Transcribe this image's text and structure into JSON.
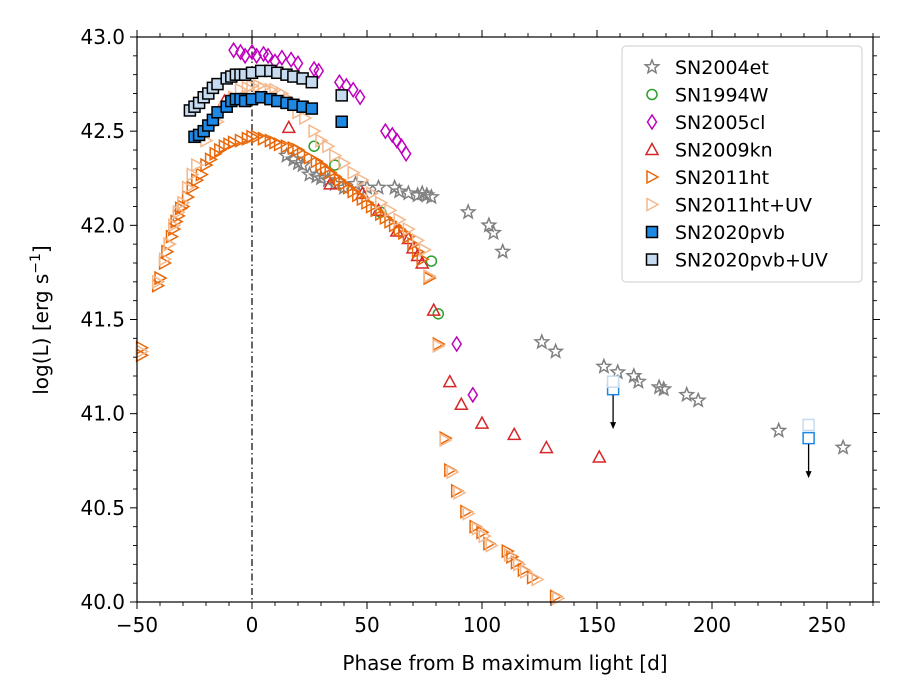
{
  "chart_data": {
    "type": "scatter",
    "xlabel": "Phase from B maximum light [d]",
    "ylabel_main": "log(L) [erg s",
    "ylabel_sup": "−1",
    "ylabel_close": "]",
    "xlim": [
      -50,
      270
    ],
    "ylim": [
      40.0,
      43.0
    ],
    "x_ticks": [
      -50,
      0,
      50,
      100,
      150,
      200,
      250
    ],
    "x_tick_labels": [
      "−50",
      "0",
      "50",
      "100",
      "150",
      "200",
      "250"
    ],
    "y_ticks": [
      40.0,
      40.5,
      41.0,
      41.5,
      42.0,
      42.5,
      43.0
    ],
    "y_tick_labels": [
      "40.0",
      "40.5",
      "41.0",
      "41.5",
      "42.0",
      "42.5",
      "43.0"
    ],
    "vertical_line_x": 0,
    "legend_position": "top-right",
    "series": [
      {
        "name": "SN2004et",
        "marker": "star",
        "color": "#808080",
        "fill": "none",
        "points": [
          [
            15,
            42.37
          ],
          [
            18,
            42.35
          ],
          [
            20,
            42.33
          ],
          [
            22,
            42.32
          ],
          [
            25,
            42.27
          ],
          [
            28,
            42.26
          ],
          [
            30,
            42.25
          ],
          [
            33,
            42.24
          ],
          [
            36,
            42.22
          ],
          [
            40,
            42.2
          ],
          [
            45,
            42.22
          ],
          [
            50,
            42.2
          ],
          [
            55,
            42.2
          ],
          [
            62,
            42.2
          ],
          [
            64,
            42.18
          ],
          [
            68,
            42.17
          ],
          [
            72,
            42.16
          ],
          [
            74,
            42.17
          ],
          [
            76,
            42.16
          ],
          [
            78,
            42.15
          ],
          [
            94,
            42.07
          ],
          [
            103,
            42.0
          ],
          [
            105,
            41.96
          ],
          [
            109,
            41.86
          ],
          [
            126,
            41.38
          ],
          [
            132,
            41.33
          ],
          [
            153,
            41.25
          ],
          [
            159,
            41.22
          ],
          [
            166,
            41.2
          ],
          [
            168,
            41.17
          ],
          [
            177,
            41.14
          ],
          [
            179,
            41.13
          ],
          [
            189,
            41.1
          ],
          [
            194,
            41.07
          ],
          [
            229,
            40.91
          ],
          [
            257,
            40.82
          ]
        ]
      },
      {
        "name": "SN1994W",
        "marker": "circle",
        "color": "#2ca02c",
        "fill": "none",
        "points": [
          [
            27,
            42.42
          ],
          [
            36,
            42.32
          ],
          [
            56,
            42.07
          ],
          [
            78,
            41.81
          ],
          [
            81,
            41.53
          ]
        ]
      },
      {
        "name": "SN2005cl",
        "marker": "diamond",
        "color": "#bf00bf",
        "fill": "none",
        "points": [
          [
            -8,
            42.93
          ],
          [
            -5,
            42.92
          ],
          [
            -3,
            42.9
          ],
          [
            0,
            42.92
          ],
          [
            2,
            42.9
          ],
          [
            5,
            42.91
          ],
          [
            7,
            42.9
          ],
          [
            10,
            42.87
          ],
          [
            13,
            42.89
          ],
          [
            17,
            42.88
          ],
          [
            20,
            42.86
          ],
          [
            27,
            42.83
          ],
          [
            29,
            42.82
          ],
          [
            38,
            42.76
          ],
          [
            41,
            42.74
          ],
          [
            44,
            42.72
          ],
          [
            47,
            42.68
          ],
          [
            58,
            42.5
          ],
          [
            61,
            42.48
          ],
          [
            63,
            42.45
          ],
          [
            65,
            42.42
          ],
          [
            67,
            42.38
          ],
          [
            89,
            41.37
          ],
          [
            96,
            41.1
          ]
        ]
      },
      {
        "name": "SN2009kn",
        "marker": "triangle-up",
        "color": "#d62728",
        "fill": "none",
        "points": [
          [
            -12,
            42.66
          ],
          [
            16,
            42.52
          ],
          [
            34,
            42.22
          ],
          [
            48,
            42.17
          ],
          [
            55,
            42.08
          ],
          [
            63,
            41.97
          ],
          [
            68,
            41.93
          ],
          [
            70,
            41.88
          ],
          [
            72,
            41.84
          ],
          [
            74,
            41.8
          ],
          [
            79,
            41.55
          ],
          [
            86,
            41.17
          ],
          [
            91,
            41.05
          ],
          [
            100,
            40.95
          ],
          [
            114,
            40.89
          ],
          [
            128,
            40.82
          ],
          [
            151,
            40.77
          ]
        ]
      },
      {
        "name": "SN2011ht",
        "marker": "triangle-right",
        "color": "#e8690b",
        "fill": "none",
        "points": [
          [
            -48,
            41.35
          ],
          [
            -48,
            41.31
          ],
          [
            -41,
            41.68
          ],
          [
            -40,
            41.72
          ],
          [
            -38,
            41.8
          ],
          [
            -37,
            41.86
          ],
          [
            -36,
            41.9
          ],
          [
            -35,
            41.94
          ],
          [
            -34,
            41.98
          ],
          [
            -33,
            42.02
          ],
          [
            -32,
            42.05
          ],
          [
            -31,
            42.09
          ],
          [
            -30,
            42.1
          ],
          [
            -28,
            42.15
          ],
          [
            -26,
            42.2
          ],
          [
            -24,
            42.24
          ],
          [
            -22,
            42.27
          ],
          [
            -20,
            42.32
          ],
          [
            -18,
            42.35
          ],
          [
            -16,
            42.38
          ],
          [
            -14,
            42.4
          ],
          [
            -12,
            42.42
          ],
          [
            -10,
            42.43
          ],
          [
            -8,
            42.44
          ],
          [
            -5,
            42.45
          ],
          [
            -2,
            42.46
          ],
          [
            0,
            42.47
          ],
          [
            2,
            42.47
          ],
          [
            5,
            42.46
          ],
          [
            8,
            42.45
          ],
          [
            10,
            42.44
          ],
          [
            12,
            42.43
          ],
          [
            15,
            42.42
          ],
          [
            18,
            42.41
          ],
          [
            20,
            42.4
          ],
          [
            22,
            42.38
          ],
          [
            25,
            42.36
          ],
          [
            28,
            42.34
          ],
          [
            30,
            42.32
          ],
          [
            32,
            42.3
          ],
          [
            34,
            42.28
          ],
          [
            36,
            42.26
          ],
          [
            38,
            42.24
          ],
          [
            40,
            42.22
          ],
          [
            42,
            42.2
          ],
          [
            44,
            42.18
          ],
          [
            46,
            42.16
          ],
          [
            48,
            42.14
          ],
          [
            50,
            42.12
          ],
          [
            52,
            42.1
          ],
          [
            54,
            42.08
          ],
          [
            56,
            42.06
          ],
          [
            58,
            42.04
          ],
          [
            60,
            42.02
          ],
          [
            62,
            42.0
          ],
          [
            64,
            41.98
          ],
          [
            66,
            41.96
          ],
          [
            68,
            41.94
          ],
          [
            70,
            41.9
          ],
          [
            72,
            41.86
          ],
          [
            74,
            41.82
          ],
          [
            77,
            41.72
          ],
          [
            81,
            41.37
          ],
          [
            84,
            40.87
          ],
          [
            86,
            40.7
          ],
          [
            89,
            40.59
          ],
          [
            93,
            40.48
          ],
          [
            97,
            40.4
          ],
          [
            100,
            40.37
          ],
          [
            103,
            40.31
          ],
          [
            111,
            40.27
          ],
          [
            113,
            40.24
          ],
          [
            115,
            40.21
          ],
          [
            118,
            40.17
          ],
          [
            122,
            40.13
          ],
          [
            132,
            40.03
          ]
        ]
      },
      {
        "name": "SN2011ht+UV",
        "marker": "triangle-right",
        "color": "#f4b88c",
        "fill": "none",
        "points": [
          [
            -48,
            41.33
          ],
          [
            -41,
            41.7
          ],
          [
            -38,
            41.82
          ],
          [
            -36,
            41.9
          ],
          [
            -34,
            42.0
          ],
          [
            -32,
            42.07
          ],
          [
            -30,
            42.12
          ],
          [
            -28,
            42.2
          ],
          [
            -26,
            42.27
          ],
          [
            -24,
            42.32
          ],
          [
            -20,
            42.45
          ],
          [
            -15,
            42.55
          ],
          [
            -12,
            42.62
          ],
          [
            -8,
            42.68
          ],
          [
            -5,
            42.72
          ],
          [
            -2,
            42.73
          ],
          [
            0,
            42.74
          ],
          [
            3,
            42.74
          ],
          [
            5,
            42.73
          ],
          [
            8,
            42.72
          ],
          [
            10,
            42.72
          ],
          [
            13,
            42.7
          ],
          [
            16,
            42.67
          ],
          [
            20,
            42.6
          ],
          [
            23,
            42.57
          ],
          [
            27,
            42.5
          ],
          [
            30,
            42.45
          ],
          [
            33,
            42.42
          ],
          [
            36,
            42.37
          ],
          [
            40,
            42.33
          ],
          [
            44,
            42.28
          ],
          [
            48,
            42.24
          ],
          [
            52,
            42.17
          ],
          [
            56,
            42.12
          ],
          [
            60,
            42.08
          ],
          [
            64,
            42.03
          ],
          [
            68,
            41.98
          ],
          [
            72,
            41.92
          ],
          [
            75,
            41.87
          ],
          [
            77,
            41.73
          ],
          [
            81,
            41.36
          ],
          [
            84,
            40.86
          ],
          [
            87,
            40.69
          ],
          [
            90,
            40.58
          ],
          [
            94,
            40.47
          ],
          [
            98,
            40.39
          ],
          [
            101,
            40.35
          ],
          [
            104,
            40.3
          ],
          [
            112,
            40.25
          ],
          [
            116,
            40.2
          ],
          [
            119,
            40.16
          ],
          [
            124,
            40.12
          ],
          [
            133,
            40.02
          ]
        ]
      },
      {
        "name": "SN2020pvb",
        "marker": "square",
        "color": "#000000",
        "fill": "#1e88e5",
        "points": [
          [
            -25,
            42.47
          ],
          [
            -23,
            42.48
          ],
          [
            -21,
            42.5
          ],
          [
            -19,
            42.53
          ],
          [
            -17,
            42.56
          ],
          [
            -15,
            42.6
          ],
          [
            -11,
            42.63
          ],
          [
            -9,
            42.66
          ],
          [
            -7,
            42.67
          ],
          [
            -5,
            42.67
          ],
          [
            -3,
            42.66
          ],
          [
            0,
            42.67
          ],
          [
            4,
            42.68
          ],
          [
            8,
            42.67
          ],
          [
            11,
            42.66
          ],
          [
            15,
            42.65
          ],
          [
            18,
            42.64
          ],
          [
            22,
            42.63
          ],
          [
            26,
            42.62
          ],
          [
            39,
            42.55
          ]
        ]
      },
      {
        "name": "SN2020pvb+UV",
        "marker": "square",
        "color": "#000000",
        "fill": "#c6dbef",
        "points": [
          [
            -27,
            42.61
          ],
          [
            -25,
            42.63
          ],
          [
            -23,
            42.65
          ],
          [
            -21,
            42.68
          ],
          [
            -19,
            42.7
          ],
          [
            -17,
            42.73
          ],
          [
            -15,
            42.75
          ],
          [
            -11,
            42.78
          ],
          [
            -9,
            42.79
          ],
          [
            -7,
            42.8
          ],
          [
            -5,
            42.8
          ],
          [
            -3,
            42.8
          ],
          [
            0,
            42.81
          ],
          [
            4,
            42.82
          ],
          [
            8,
            42.82
          ],
          [
            11,
            42.81
          ],
          [
            15,
            42.8
          ],
          [
            18,
            42.79
          ],
          [
            22,
            42.78
          ],
          [
            26,
            42.76
          ],
          [
            39,
            42.69
          ]
        ]
      }
    ],
    "upper_limits": [
      {
        "series": "SN2020pvb",
        "x": 157,
        "y": 41.13,
        "color": "#1e88e5"
      },
      {
        "series": "SN2020pvb+UV",
        "x": 157,
        "y": 41.17,
        "color": "#c6dbef"
      },
      {
        "series": "SN2020pvb",
        "x": 242,
        "y": 40.87,
        "color": "#1e88e5"
      },
      {
        "series": "SN2020pvb+UV",
        "x": 242,
        "y": 40.94,
        "color": "#c6dbef"
      }
    ]
  }
}
